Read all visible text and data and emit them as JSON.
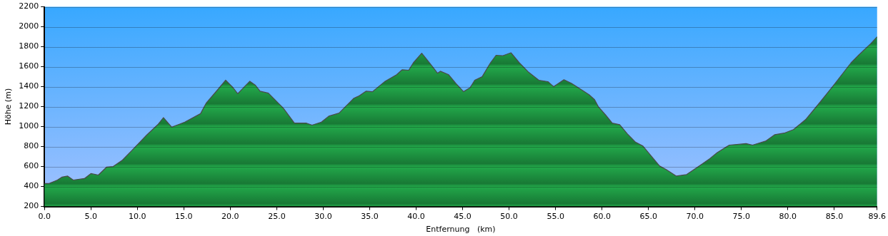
{
  "chart_data": {
    "type": "area",
    "xlabel": "Entfernung   (km)",
    "ylabel": "Höhe (m)",
    "x": [
      0,
      0.5,
      1.4,
      1.9,
      2.5,
      3.1,
      4.3,
      5.0,
      5.8,
      6.7,
      7.4,
      8.4,
      9.4,
      11.0,
      12.2,
      12.8,
      13.7,
      15.1,
      16.8,
      17.4,
      18.6,
      19.5,
      20.3,
      20.8,
      22.1,
      22.7,
      23.2,
      24.1,
      25.7,
      26.9,
      28.2,
      28.8,
      29.8,
      30.6,
      31.7,
      33.3,
      33.8,
      34.6,
      35.3,
      36.6,
      37.9,
      38.5,
      39.2,
      39.7,
      40.6,
      41.3,
      42.3,
      42.6,
      43.5,
      44.3,
      45.1,
      45.8,
      46.3,
      47.1,
      48.0,
      48.6,
      49.3,
      50.2,
      51.1,
      52.1,
      53.2,
      54.2,
      54.8,
      55.9,
      56.7,
      58.6,
      59.2,
      59.6,
      60.4,
      61.1,
      61.9,
      62.7,
      63.6,
      64.4,
      66.2,
      66.9,
      68.0,
      69.1,
      70.3,
      71.6,
      72.4,
      73.7,
      75.5,
      76.2,
      77.6,
      78.6,
      79.6,
      80.6,
      81.9,
      83.2,
      84.8,
      86.8,
      87.6,
      88.9,
      89.6
    ],
    "series": [
      {
        "color": "#22a84a",
        "values": [
          430,
          430,
          465,
          495,
          505,
          465,
          480,
          530,
          515,
          595,
          600,
          665,
          760,
          915,
          1020,
          1090,
          995,
          1045,
          1130,
          1235,
          1365,
          1465,
          1390,
          1330,
          1455,
          1415,
          1355,
          1335,
          1185,
          1035,
          1035,
          1015,
          1045,
          1105,
          1135,
          1285,
          1305,
          1355,
          1350,
          1450,
          1520,
          1570,
          1565,
          1640,
          1735,
          1655,
          1535,
          1555,
          1520,
          1430,
          1350,
          1390,
          1465,
          1500,
          1640,
          1715,
          1710,
          1740,
          1640,
          1545,
          1465,
          1450,
          1400,
          1470,
          1435,
          1320,
          1270,
          1200,
          1115,
          1035,
          1020,
          930,
          845,
          805,
          605,
          570,
          505,
          520,
          595,
          680,
          740,
          815,
          830,
          815,
          855,
          920,
          935,
          970,
          1070,
          1215,
          1400,
          1640,
          1715,
          1830,
          1900
        ]
      }
    ],
    "xlim": [
      0,
      89.6
    ],
    "xticks": [
      {
        "value": 0,
        "label": "0.0"
      },
      {
        "value": 5,
        "label": "5.0"
      },
      {
        "value": 10,
        "label": "10.0"
      },
      {
        "value": 15,
        "label": "15.0"
      },
      {
        "value": 20,
        "label": "20.0"
      },
      {
        "value": 25,
        "label": "25.0"
      },
      {
        "value": 30,
        "label": "30.0"
      },
      {
        "value": 35,
        "label": "35.0"
      },
      {
        "value": 40,
        "label": "40.0"
      },
      {
        "value": 45,
        "label": "45.0"
      },
      {
        "value": 50,
        "label": "50.0"
      },
      {
        "value": 55,
        "label": "55.0"
      },
      {
        "value": 60,
        "label": "60.0"
      },
      {
        "value": 65,
        "label": "65.0"
      },
      {
        "value": 70,
        "label": "70.0"
      },
      {
        "value": 75,
        "label": "75.0"
      },
      {
        "value": 80,
        "label": "80.0"
      },
      {
        "value": 85,
        "label": "85.0"
      },
      {
        "value": 89.6,
        "label": "89.6"
      }
    ],
    "ylim": [
      200,
      2200
    ],
    "yticks": [
      200,
      400,
      600,
      800,
      1000,
      1200,
      1400,
      1600,
      1800,
      2000,
      2200
    ],
    "grid": "y",
    "legend": false,
    "marker": "none",
    "line_style": "solid"
  }
}
